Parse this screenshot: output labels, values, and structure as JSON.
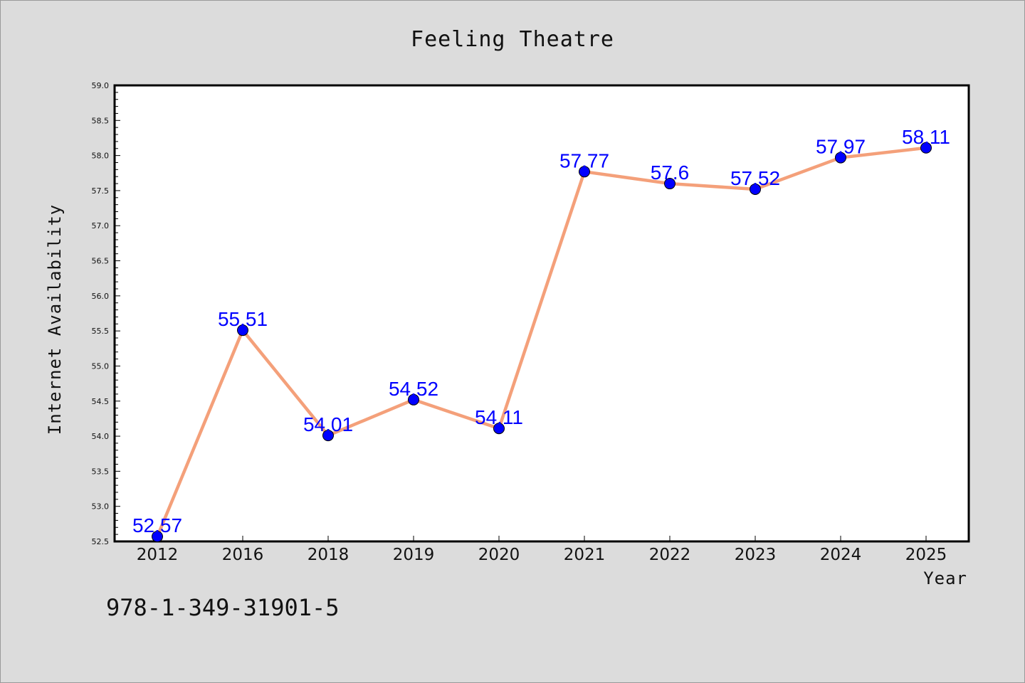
{
  "chart_data": {
    "type": "line",
    "title": "Feeling Theatre",
    "xlabel": "Year",
    "ylabel": "Internet Availability",
    "categories": [
      "2012",
      "2016",
      "2018",
      "2019",
      "2020",
      "2021",
      "2022",
      "2023",
      "2024",
      "2025"
    ],
    "series": [
      {
        "values": [
          52.57,
          55.51,
          54.01,
          54.52,
          54.11,
          57.77,
          57.6,
          57.52,
          57.97,
          58.11
        ],
        "labels": [
          "52.57",
          "55.51",
          "54.01",
          "54.52",
          "54.11",
          "57.77",
          "57.6",
          "57.52",
          "57.97",
          "58.11"
        ],
        "line_color": "#f4a07a",
        "marker_color": "#0000ff"
      }
    ],
    "ylim": [
      52.5,
      59.0
    ],
    "yticks": [
      "52.5",
      "53.0",
      "53.5",
      "54.0",
      "54.5",
      "55.0",
      "55.5",
      "56.0",
      "56.5",
      "57.0",
      "57.5",
      "58.0",
      "58.5",
      "59.0"
    ],
    "grid": false,
    "legend": "none"
  },
  "footer": {
    "isbn": "978-1-349-31901-5"
  },
  "colors": {
    "background": "#dcdcdc",
    "plot_background": "#ffffff"
  }
}
